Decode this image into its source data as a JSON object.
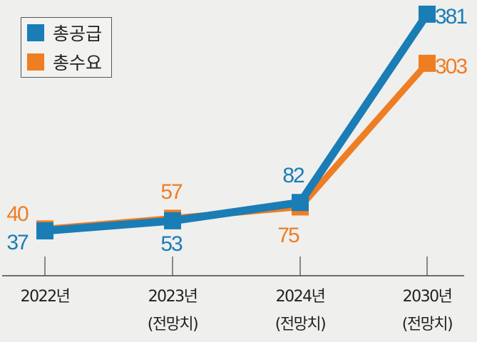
{
  "chart_data": {
    "type": "line",
    "title": "",
    "xlabel": "",
    "ylabel": "",
    "categories": [
      {
        "line1": "2022년",
        "line2": ""
      },
      {
        "line1": "2023년",
        "line2": "(전망치)"
      },
      {
        "line1": "2024년",
        "line2": "(전망치)"
      },
      {
        "line1": "2030년",
        "line2": "(전망치)"
      }
    ],
    "series": [
      {
        "name": "총공급",
        "color": "#1a7db5",
        "values": [
          37,
          53,
          82,
          381
        ]
      },
      {
        "name": "총수요",
        "color": "#ef7d22",
        "values": [
          40,
          57,
          75,
          303
        ]
      }
    ],
    "legend_position": "top-left",
    "grid": false,
    "data_labels": true
  }
}
